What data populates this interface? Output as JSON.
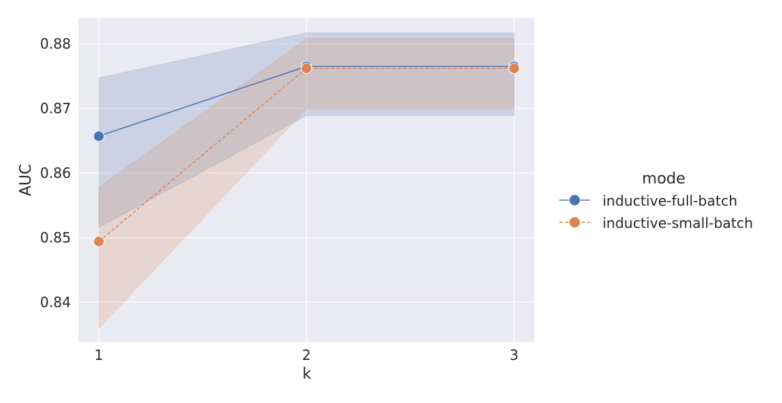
{
  "chart_data": {
    "type": "line",
    "title": "",
    "xlabel": "k",
    "ylabel": "AUC",
    "x": [
      1,
      2,
      3
    ],
    "xticks": [
      "1",
      "2",
      "3"
    ],
    "yticks": [
      "0.84",
      "0.85",
      "0.86",
      "0.87",
      "0.88"
    ],
    "ylim": [
      0.8339,
      0.884
    ],
    "xlim": [
      0.9,
      3.1
    ],
    "grid": true,
    "legend": {
      "title": "mode",
      "position": "right outside"
    },
    "series": [
      {
        "name": "inductive-full-batch",
        "color": "#4c72b0",
        "linestyle": "solid",
        "values": [
          0.8657,
          0.8765,
          0.8765
        ],
        "ci_lower": [
          0.8516,
          0.8689,
          0.8689
        ],
        "ci_upper": [
          0.8747,
          0.8817,
          0.8817
        ]
      },
      {
        "name": "inductive-small-batch",
        "color": "#dd8452",
        "linestyle": "dashed",
        "values": [
          0.8494,
          0.8762,
          0.8762
        ],
        "ci_lower": [
          0.836,
          0.8699,
          0.8699
        ],
        "ci_upper": [
          0.8578,
          0.8808,
          0.8808
        ]
      }
    ]
  }
}
